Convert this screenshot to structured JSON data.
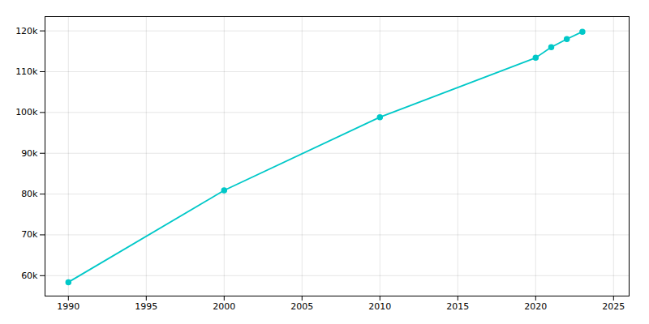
{
  "chart_data": {
    "type": "line",
    "x": [
      1990,
      2000,
      2010,
      2020,
      2021,
      2022,
      2023
    ],
    "values": [
      58400,
      80900,
      98850,
      113400,
      116000,
      118000,
      119800
    ],
    "color": "#00c8c8",
    "marker": "circle",
    "xlim": [
      1988.5,
      2026
    ],
    "xticks": [
      1990,
      1995,
      2000,
      2005,
      2010,
      2015,
      2020,
      2025
    ],
    "ylim": [
      55000,
      123500
    ],
    "yticks": [
      {
        "value": 60000,
        "label": "60k"
      },
      {
        "value": 70000,
        "label": "70k"
      },
      {
        "value": 80000,
        "label": "80k"
      },
      {
        "value": 90000,
        "label": "90k"
      },
      {
        "value": 100000,
        "label": "100k"
      },
      {
        "value": 110000,
        "label": "110k"
      },
      {
        "value": 120000,
        "label": "120k"
      }
    ],
    "grid": true
  }
}
